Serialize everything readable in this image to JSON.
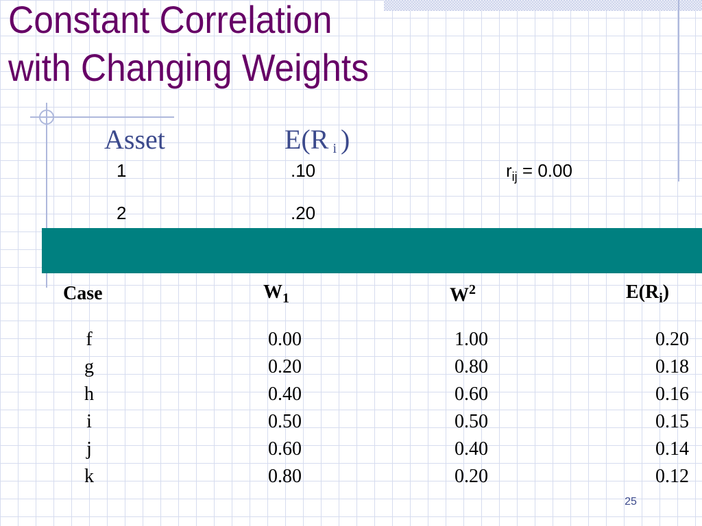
{
  "slide": {
    "title_line1": "Constant Correlation",
    "title_line2": "with Changing Weights",
    "page_number": "25"
  },
  "assets": {
    "header_asset": "Asset",
    "header_er_left": "E(R",
    "header_er_sub": "i",
    "header_er_right": ")",
    "rows": [
      {
        "asset": "1",
        "er": ".10"
      },
      {
        "asset": "2",
        "er": ".20"
      }
    ],
    "correlation": {
      "symbol": "r",
      "subscript": "ij",
      "value_text": "= 0.00"
    }
  },
  "table": {
    "headers": {
      "case": "Case",
      "w1": "W",
      "w1_sub": "1",
      "w2": "W",
      "w2_sup": "2",
      "er": "E(R",
      "er_sub": "i",
      "er_close": ")"
    },
    "case_values": [
      "f",
      "g",
      "h",
      "i",
      "j",
      "k"
    ],
    "w1_values": [
      "0.00",
      "0.20",
      "0.40",
      "0.50",
      "0.60",
      "0.80"
    ],
    "w2_values": [
      "1.00",
      "0.80",
      "0.60",
      "0.50",
      "0.40",
      "0.20"
    ],
    "er_values": [
      "0.20",
      "0.18",
      "0.16",
      "0.15",
      "0.14",
      "0.12"
    ]
  },
  "colors": {
    "title": "#660066",
    "header_text": "#3c4a8c",
    "bar": "#008080"
  }
}
